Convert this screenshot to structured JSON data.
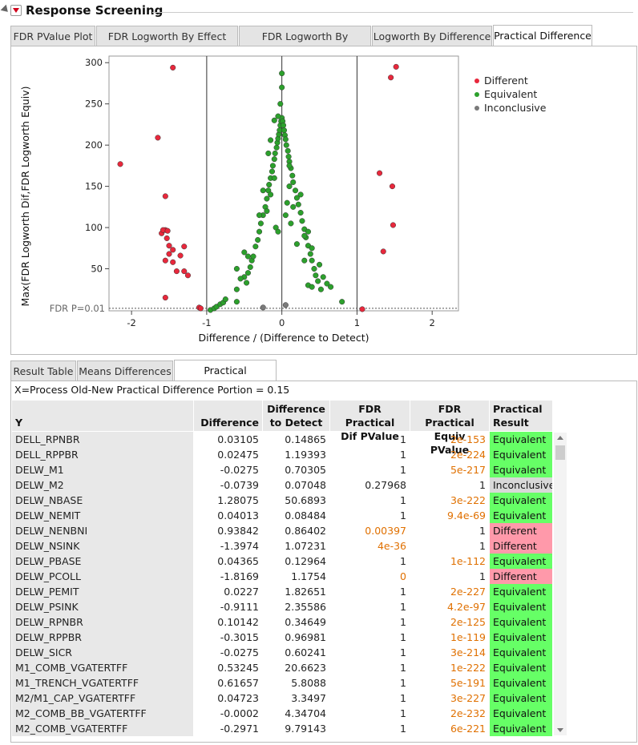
{
  "outline": {
    "title": "Response Screening"
  },
  "top_tabs": [
    {
      "label": "FDR PValue Plot",
      "active": false
    },
    {
      "label": "FDR Logworth By Effect Size",
      "active": false
    },
    {
      "label": "FDR Logworth By RSquare",
      "active": false
    },
    {
      "label": "Logworth By Difference",
      "active": false
    },
    {
      "label": "Practical Difference",
      "active": true
    }
  ],
  "chart_data": {
    "type": "scatter",
    "xlabel": "Difference / (Difference to Detect)",
    "ylabel": "Max(FDR Logworth Dif,FDR Logworth Equiv)",
    "xlim": [
      -2.3,
      2.35
    ],
    "ylim": [
      -1,
      308
    ],
    "x_ticks": [
      "-2",
      "-1",
      "0",
      "1",
      "2"
    ],
    "y_ticks": [
      "50",
      "100",
      "150",
      "200",
      "250",
      "300"
    ],
    "reference_lines_x": [
      -1,
      0,
      1
    ],
    "threshold_label": "FDR P=0.01",
    "threshold_y": 2,
    "grid": false,
    "legend_position": "right",
    "series": [
      {
        "name": "Different",
        "color": "#e8283c",
        "points": [
          [
            -2.15,
            177
          ],
          [
            -1.65,
            209
          ],
          [
            -1.45,
            294
          ],
          [
            -1.55,
            138
          ],
          [
            -1.55,
            97
          ],
          [
            -1.6,
            93
          ],
          [
            -1.58,
            97
          ],
          [
            -1.52,
            96
          ],
          [
            -1.53,
            87
          ],
          [
            -1.5,
            78
          ],
          [
            -1.45,
            73
          ],
          [
            -1.5,
            68
          ],
          [
            -1.55,
            60
          ],
          [
            -1.35,
            66
          ],
          [
            -1.3,
            77
          ],
          [
            -1.45,
            58
          ],
          [
            -1.4,
            47
          ],
          [
            -1.3,
            47
          ],
          [
            -1.25,
            42
          ],
          [
            -1.55,
            15
          ],
          [
            -1.1,
            3
          ],
          [
            -1.08,
            2
          ],
          [
            1.07,
            1
          ],
          [
            1.3,
            166
          ],
          [
            1.35,
            71
          ],
          [
            1.45,
            282
          ],
          [
            1.52,
            295
          ],
          [
            1.47,
            150
          ],
          [
            1.48,
            103
          ]
        ]
      },
      {
        "name": "Equivalent",
        "color": "#2ca02c",
        "points": [
          [
            -0.95,
            0
          ],
          [
            -0.9,
            2
          ],
          [
            -0.87,
            4
          ],
          [
            -0.82,
            7
          ],
          [
            -0.78,
            9
          ],
          [
            -0.75,
            13
          ],
          [
            -0.6,
            10
          ],
          [
            -0.6,
            25
          ],
          [
            -0.5,
            40
          ],
          [
            -0.45,
            45
          ],
          [
            -0.47,
            33
          ],
          [
            -0.42,
            52
          ],
          [
            -0.4,
            60
          ],
          [
            -0.38,
            65
          ],
          [
            -0.35,
            77
          ],
          [
            -0.32,
            85
          ],
          [
            -0.3,
            95
          ],
          [
            -0.28,
            105
          ],
          [
            -0.25,
            115
          ],
          [
            -0.22,
            125
          ],
          [
            -0.2,
            135
          ],
          [
            -0.18,
            145
          ],
          [
            -0.17,
            152
          ],
          [
            -0.15,
            160
          ],
          [
            -0.13,
            168
          ],
          [
            -0.12,
            175
          ],
          [
            -0.1,
            183
          ],
          [
            -0.09,
            190
          ],
          [
            -0.07,
            197
          ],
          [
            -0.06,
            203
          ],
          [
            -0.05,
            208
          ],
          [
            -0.04,
            213
          ],
          [
            -0.03,
            218
          ],
          [
            -0.02,
            224
          ],
          [
            -0.01,
            229
          ],
          [
            0,
            233
          ],
          [
            0.01,
            229
          ],
          [
            0.02,
            224
          ],
          [
            0.03,
            218
          ],
          [
            0.04,
            212
          ],
          [
            0.05,
            207
          ],
          [
            0.06,
            200
          ],
          [
            0.08,
            193
          ],
          [
            0.09,
            186
          ],
          [
            0.1,
            180
          ],
          [
            0.12,
            172
          ],
          [
            0.14,
            163
          ],
          [
            0.15,
            155
          ],
          [
            0.18,
            145
          ],
          [
            0.2,
            136
          ],
          [
            0.22,
            128
          ],
          [
            0.25,
            118
          ],
          [
            0.27,
            108
          ],
          [
            0.3,
            98
          ],
          [
            0.32,
            88
          ],
          [
            0.35,
            78
          ],
          [
            0.38,
            68
          ],
          [
            0.4,
            60
          ],
          [
            0.43,
            50
          ],
          [
            0.45,
            42
          ],
          [
            0.48,
            35
          ],
          [
            0.52,
            25
          ],
          [
            0.6,
            32
          ],
          [
            0.65,
            28
          ],
          [
            0.8,
            10
          ],
          [
            -0.05,
            235
          ],
          [
            0,
            287
          ],
          [
            0,
            270
          ],
          [
            -0.02,
            250
          ],
          [
            -0.1,
            230
          ],
          [
            -0.15,
            206
          ],
          [
            -0.18,
            190
          ],
          [
            -0.1,
            160
          ],
          [
            0.1,
            150
          ],
          [
            0.1,
            175
          ],
          [
            0.15,
            125
          ],
          [
            0.25,
            140
          ],
          [
            0.35,
            95
          ],
          [
            0.4,
            75
          ],
          [
            0.5,
            55
          ],
          [
            0.55,
            40
          ],
          [
            0.2,
            80
          ],
          [
            -0.08,
            100
          ],
          [
            -0.25,
            145
          ],
          [
            -0.3,
            115
          ],
          [
            -0.2,
            120
          ],
          [
            -0.15,
            140
          ],
          [
            0.05,
            115
          ],
          [
            0.07,
            130
          ],
          [
            0.12,
            105
          ],
          [
            -0.05,
            95
          ],
          [
            0.3,
            90
          ],
          [
            0.3,
            60
          ],
          [
            0.35,
            30
          ],
          [
            0.4,
            28
          ],
          [
            -0.6,
            50
          ],
          [
            -0.5,
            70
          ],
          [
            -0.45,
            65
          ],
          [
            -0.55,
            38
          ]
        ]
      },
      {
        "name": "Inconclusive",
        "color": "#7a7a7a",
        "points": [
          [
            -0.25,
            3
          ],
          [
            0.05,
            6
          ]
        ]
      }
    ]
  },
  "bottom_tabs": [
    {
      "label": "Result Table",
      "active": false
    },
    {
      "label": "Means Differences",
      "active": false
    },
    {
      "label": "Practical Differences",
      "active": true
    }
  ],
  "subtitle": "X=Process  Old-New  Practical Difference Portion = 0.15",
  "table": {
    "columns": [
      {
        "label": "Y"
      },
      {
        "label": "Difference"
      },
      {
        "label": "Difference\nto Detect"
      },
      {
        "label": "FDR Practical\nDif PValue"
      },
      {
        "label": "FDR Practical\nEquiv PValue"
      },
      {
        "label": "Practical\nResult"
      }
    ],
    "rows": [
      {
        "y": "DELL_RPNBR",
        "diff": "0.03105",
        "detect": "0.14865",
        "dif_p": "1",
        "dif_p_hl": false,
        "equiv_p": "2e-153",
        "equiv_p_hl": true,
        "result": "Equivalent"
      },
      {
        "y": "DELL_RPPBR",
        "diff": "0.02475",
        "detect": "1.19393",
        "dif_p": "1",
        "dif_p_hl": false,
        "equiv_p": "2e-224",
        "equiv_p_hl": true,
        "result": "Equivalent"
      },
      {
        "y": "DELW_M1",
        "diff": "-0.0275",
        "detect": "0.70305",
        "dif_p": "1",
        "dif_p_hl": false,
        "equiv_p": "5e-217",
        "equiv_p_hl": true,
        "result": "Equivalent"
      },
      {
        "y": "DELW_M2",
        "diff": "-0.0739",
        "detect": "0.07048",
        "dif_p": "0.27968",
        "dif_p_hl": false,
        "equiv_p": "1",
        "equiv_p_hl": false,
        "result": "Inconclusive"
      },
      {
        "y": "DELW_NBASE",
        "diff": "1.28075",
        "detect": "50.6893",
        "dif_p": "1",
        "dif_p_hl": false,
        "equiv_p": "3e-222",
        "equiv_p_hl": true,
        "result": "Equivalent"
      },
      {
        "y": "DELW_NEMIT",
        "diff": "0.04013",
        "detect": "0.08484",
        "dif_p": "1",
        "dif_p_hl": false,
        "equiv_p": "9.4e-69",
        "equiv_p_hl": true,
        "result": "Equivalent"
      },
      {
        "y": "DELW_NENBNI",
        "diff": "0.93842",
        "detect": "0.86402",
        "dif_p": "0.00397",
        "dif_p_hl": true,
        "equiv_p": "1",
        "equiv_p_hl": false,
        "result": "Different"
      },
      {
        "y": "DELW_NSINK",
        "diff": "-1.3974",
        "detect": "1.07231",
        "dif_p": "4e-36",
        "dif_p_hl": true,
        "equiv_p": "1",
        "equiv_p_hl": false,
        "result": "Different"
      },
      {
        "y": "DELW_PBASE",
        "diff": "0.04365",
        "detect": "0.12964",
        "dif_p": "1",
        "dif_p_hl": false,
        "equiv_p": "1e-112",
        "equiv_p_hl": true,
        "result": "Equivalent"
      },
      {
        "y": "DELW_PCOLL",
        "diff": "-1.8169",
        "detect": "1.1754",
        "dif_p": "0",
        "dif_p_hl": true,
        "equiv_p": "1",
        "equiv_p_hl": false,
        "result": "Different"
      },
      {
        "y": "DELW_PEMIT",
        "diff": "0.0227",
        "detect": "1.82651",
        "dif_p": "1",
        "dif_p_hl": false,
        "equiv_p": "2e-227",
        "equiv_p_hl": true,
        "result": "Equivalent"
      },
      {
        "y": "DELW_PSINK",
        "diff": "-0.9111",
        "detect": "2.35586",
        "dif_p": "1",
        "dif_p_hl": false,
        "equiv_p": "4.2e-97",
        "equiv_p_hl": true,
        "result": "Equivalent"
      },
      {
        "y": "DELW_RPNBR",
        "diff": "0.10142",
        "detect": "0.34649",
        "dif_p": "1",
        "dif_p_hl": false,
        "equiv_p": "2e-125",
        "equiv_p_hl": true,
        "result": "Equivalent"
      },
      {
        "y": "DELW_RPPBR",
        "diff": "-0.3015",
        "detect": "0.96981",
        "dif_p": "1",
        "dif_p_hl": false,
        "equiv_p": "1e-119",
        "equiv_p_hl": true,
        "result": "Equivalent"
      },
      {
        "y": "DELW_SICR",
        "diff": "-0.0275",
        "detect": "0.60241",
        "dif_p": "1",
        "dif_p_hl": false,
        "equiv_p": "3e-214",
        "equiv_p_hl": true,
        "result": "Equivalent"
      },
      {
        "y": "M1_COMB_VGATERTFF",
        "diff": "0.53245",
        "detect": "20.6623",
        "dif_p": "1",
        "dif_p_hl": false,
        "equiv_p": "1e-222",
        "equiv_p_hl": true,
        "result": "Equivalent"
      },
      {
        "y": "M1_TRENCH_VGATERTFF",
        "diff": "0.61657",
        "detect": "5.8088",
        "dif_p": "1",
        "dif_p_hl": false,
        "equiv_p": "5e-191",
        "equiv_p_hl": true,
        "result": "Equivalent"
      },
      {
        "y": "M2/M1_CAP_VGATERTFF",
        "diff": "0.04723",
        "detect": "3.3497",
        "dif_p": "1",
        "dif_p_hl": false,
        "equiv_p": "3e-227",
        "equiv_p_hl": true,
        "result": "Equivalent"
      },
      {
        "y": "M2_COMB_BB_VGATERTFF",
        "diff": "-0.0002",
        "detect": "4.34704",
        "dif_p": "1",
        "dif_p_hl": false,
        "equiv_p": "2e-232",
        "equiv_p_hl": true,
        "result": "Equivalent"
      },
      {
        "y": "M2_COMB_VGATERTFF",
        "diff": "-0.2971",
        "detect": "9.79143",
        "dif_p": "1",
        "dif_p_hl": false,
        "equiv_p": "6e-221",
        "equiv_p_hl": true,
        "result": "Equivalent"
      }
    ]
  }
}
